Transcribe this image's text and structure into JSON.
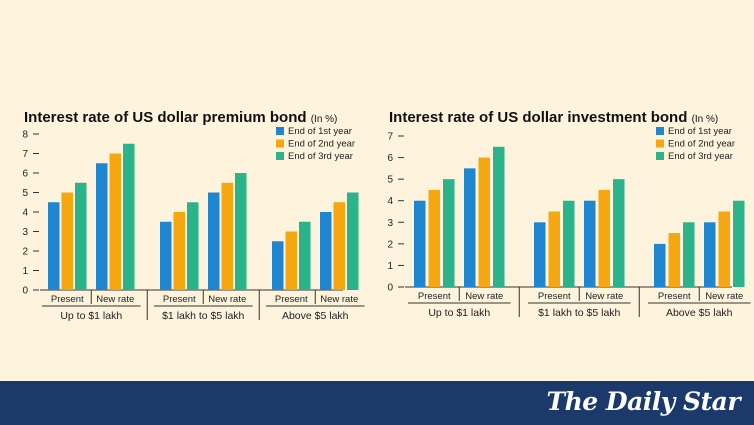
{
  "brand": "The Daily Star",
  "colors": {
    "background": "#fef4dd",
    "footer": "#1b3a6b",
    "end_of_1st_year": "#1f86cf",
    "end_of_2nd_year": "#f5a712",
    "end_of_3rd_year": "#2bb38b"
  },
  "chart_data": [
    {
      "type": "bar",
      "title": "Interest rate of US dollar premium bond",
      "unit_label": "(In %)",
      "groups": [
        "Up to $1 lakh",
        "$1 lakh to $5 lakh",
        "Above $5 lakh"
      ],
      "categories": [
        "Present",
        "New rate",
        "Present",
        "New rate",
        "Present",
        "New rate"
      ],
      "series": [
        {
          "name": "End of 1st year",
          "values": [
            4.5,
            6.5,
            3.5,
            5,
            2.5,
            4
          ]
        },
        {
          "name": "End of 2nd year",
          "values": [
            5,
            7,
            4,
            5.5,
            3,
            4.5
          ]
        },
        {
          "name": "End of 3rd year",
          "values": [
            5.5,
            7.5,
            4.5,
            6,
            3.5,
            5
          ]
        }
      ],
      "ylim": [
        0,
        8
      ],
      "yticks": [
        0,
        1,
        2,
        3,
        4,
        5,
        6,
        7,
        8
      ],
      "grid": false,
      "legend": "top-right"
    },
    {
      "type": "bar",
      "title": "Interest rate of US dollar investment bond",
      "unit_label": "(In %)",
      "groups": [
        "Up to $1 lakh",
        "$1 lakh to $5 lakh",
        "Above $5 lakh"
      ],
      "categories": [
        "Present",
        "New rate",
        "Present",
        "New rate",
        "Present",
        "New rate"
      ],
      "series": [
        {
          "name": "End of 1st year",
          "values": [
            4,
            5.5,
            3,
            4,
            2,
            3
          ]
        },
        {
          "name": "End of 2nd year",
          "values": [
            4.5,
            6,
            3.5,
            4.5,
            2.5,
            3.5
          ]
        },
        {
          "name": "End of 3rd year",
          "values": [
            5,
            6.5,
            4,
            5,
            3,
            4
          ]
        }
      ],
      "ylim": [
        0,
        7
      ],
      "yticks": [
        0,
        1,
        2,
        3,
        4,
        5,
        6,
        7
      ],
      "grid": false,
      "legend": "top-right"
    }
  ]
}
